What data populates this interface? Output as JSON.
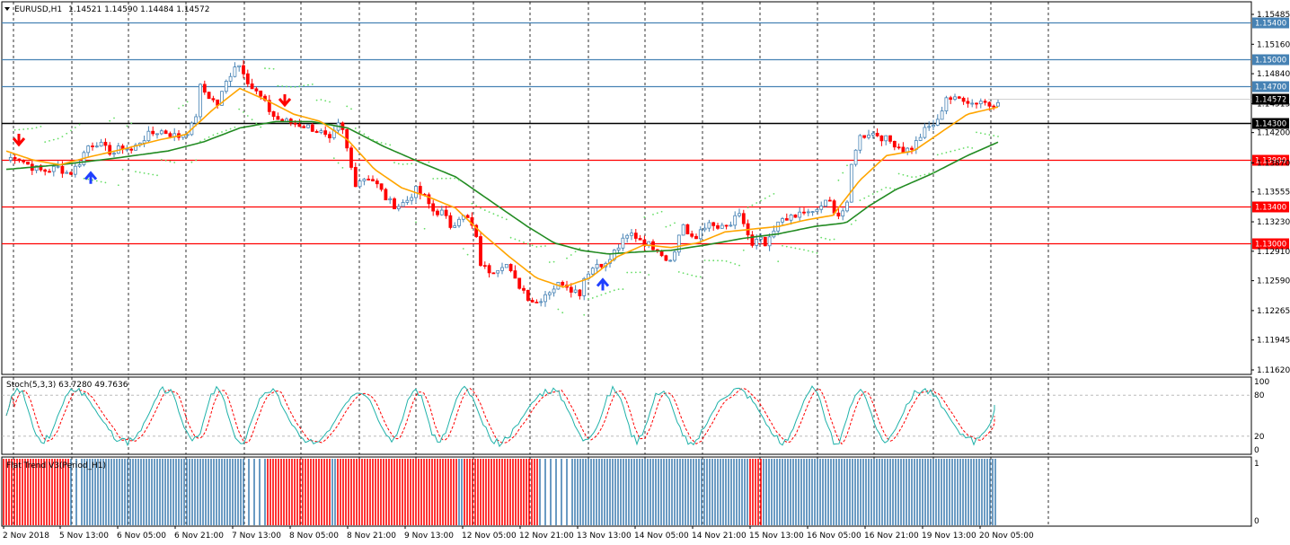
{
  "header": {
    "symbol": "EURUSD,H1",
    "ohlc": "1.14521 1.14590 1.14484 1.14572"
  },
  "stoch": {
    "label": "Stoch(5,3,3) 63.7280 49.7636",
    "level_labels": [
      "100",
      "80",
      "20",
      "0"
    ]
  },
  "flat_trend": {
    "label": "Flat Trend V3(Period_H1)",
    "level_labels": [
      "1",
      "0"
    ]
  },
  "price_axis": {
    "ticks": [
      "1.15485",
      "1.15160",
      "1.14840",
      "1.14515",
      "1.14200",
      "1.13870",
      "1.13555",
      "1.13230",
      "1.12910",
      "1.12590",
      "1.12265",
      "1.11945",
      "1.11620"
    ]
  },
  "levels": [
    {
      "label": "1.15400",
      "value": 1.154,
      "color": "#4682b4"
    },
    {
      "label": "1.15000",
      "value": 1.15,
      "color": "#4682b4"
    },
    {
      "label": "1.14700",
      "value": 1.147,
      "color": "#4682b4"
    },
    {
      "label": "1.14572",
      "value": 1.14572,
      "color": "#000000"
    },
    {
      "label": "1.14300",
      "value": 1.143,
      "color": "#000000"
    },
    {
      "label": "1.13900",
      "value": 1.139,
      "color": "#ff0000"
    },
    {
      "label": "1.13400",
      "value": 1.134,
      "color": "#ff0000"
    },
    {
      "label": "1.13000",
      "value": 1.13,
      "color": "#ff0000"
    }
  ],
  "time_axis": {
    "labels": [
      "2 Nov 2018",
      "5 Nov 13:00",
      "6 Nov 05:00",
      "6 Nov 21:00",
      "7 Nov 13:00",
      "8 Nov 05:00",
      "8 Nov 21:00",
      "9 Nov 13:00",
      "12 Nov 05:00",
      "12 Nov 21:00",
      "13 Nov 13:00",
      "14 Nov 05:00",
      "14 Nov 21:00",
      "15 Nov 13:00",
      "16 Nov 05:00",
      "16 Nov 21:00",
      "19 Nov 13:00",
      "20 Nov 05:00"
    ]
  },
  "colors": {
    "bull_candle": "#4682b4",
    "bear_candle": "#ff0000",
    "ma_fast": "#ffa500",
    "ma_slow": "#228b22",
    "sar": "#66dd66",
    "stoch_main": "#20b2aa",
    "stoch_signal": "#ff0000",
    "grid": "#000000"
  },
  "chart_data": {
    "type": "candlestick",
    "symbol": "EURUSD",
    "timeframe": "H1",
    "ylim": [
      1.1162,
      1.1555
    ],
    "close_path": [
      [
        0,
        1.139
      ],
      [
        10,
        1.1395
      ],
      [
        20,
        1.1388
      ],
      [
        30,
        1.1382
      ],
      [
        40,
        1.1378
      ],
      [
        50,
        1.138
      ],
      [
        58,
        1.1382
      ],
      [
        70,
        1.1375
      ],
      [
        80,
        1.1385
      ],
      [
        90,
        1.1405
      ],
      [
        100,
        1.141
      ],
      [
        110,
        1.1402
      ],
      [
        120,
        1.1398
      ],
      [
        130,
        1.1405
      ],
      [
        140,
        1.14
      ],
      [
        150,
        1.1412
      ],
      [
        160,
        1.1418
      ],
      [
        170,
        1.1422
      ],
      [
        180,
        1.142
      ],
      [
        190,
        1.1415
      ],
      [
        200,
        1.142
      ],
      [
        210,
        1.143
      ],
      [
        215,
        1.147
      ],
      [
        225,
        1.146
      ],
      [
        235,
        1.145
      ],
      [
        245,
        1.1475
      ],
      [
        255,
        1.1495
      ],
      [
        262,
        1.1492
      ],
      [
        272,
        1.147
      ],
      [
        282,
        1.146
      ],
      [
        290,
        1.1448
      ],
      [
        300,
        1.1435
      ],
      [
        310,
        1.1432
      ],
      [
        320,
        1.143
      ],
      [
        330,
        1.1428
      ],
      [
        340,
        1.1425
      ],
      [
        350,
        1.142
      ],
      [
        360,
        1.141
      ],
      [
        370,
        1.1428
      ],
      [
        375,
        1.142
      ],
      [
        382,
        1.139
      ],
      [
        388,
        1.1365
      ],
      [
        395,
        1.137
      ],
      [
        405,
        1.1372
      ],
      [
        415,
        1.136
      ],
      [
        425,
        1.1345
      ],
      [
        435,
        1.134
      ],
      [
        445,
        1.1345
      ],
      [
        455,
        1.1358
      ],
      [
        465,
        1.135
      ],
      [
        475,
        1.1335
      ],
      [
        485,
        1.1333
      ],
      [
        495,
        1.1318
      ],
      [
        505,
        1.133
      ],
      [
        515,
        1.1325
      ],
      [
        522,
        1.131
      ],
      [
        528,
        1.1278
      ],
      [
        535,
        1.127
      ],
      [
        545,
        1.1272
      ],
      [
        555,
        1.128
      ],
      [
        565,
        1.126
      ],
      [
        575,
        1.125
      ],
      [
        582,
        1.124
      ],
      [
        590,
        1.1235
      ],
      [
        600,
        1.1245
      ],
      [
        610,
        1.1252
      ],
      [
        620,
        1.1258
      ],
      [
        630,
        1.125
      ],
      [
        638,
        1.1245
      ],
      [
        645,
        1.1268
      ],
      [
        652,
        1.1272
      ],
      [
        660,
        1.128
      ],
      [
        668,
        1.1275
      ],
      [
        675,
        1.1288
      ],
      [
        685,
        1.13
      ],
      [
        695,
        1.131
      ],
      [
        705,
        1.1305
      ],
      [
        715,
        1.1298
      ],
      [
        725,
        1.1295
      ],
      [
        735,
        1.1282
      ],
      [
        745,
        1.129
      ],
      [
        752,
        1.1325
      ],
      [
        758,
        1.131
      ],
      [
        766,
        1.13
      ],
      [
        775,
        1.132
      ],
      [
        785,
        1.1318
      ],
      [
        795,
        1.1315
      ],
      [
        805,
        1.1318
      ],
      [
        815,
        1.133
      ],
      [
        822,
        1.132
      ],
      [
        830,
        1.1295
      ],
      [
        838,
        1.1305
      ],
      [
        846,
        1.1295
      ],
      [
        856,
        1.1315
      ],
      [
        866,
        1.133
      ],
      [
        876,
        1.1325
      ],
      [
        886,
        1.1335
      ],
      [
        896,
        1.133
      ],
      [
        906,
        1.134
      ],
      [
        916,
        1.1345
      ],
      [
        926,
        1.133
      ],
      [
        936,
        1.134
      ],
      [
        942,
        1.1395
      ],
      [
        950,
        1.1415
      ],
      [
        960,
        1.142
      ],
      [
        970,
        1.1418
      ],
      [
        980,
        1.1412
      ],
      [
        990,
        1.1408
      ],
      [
        1000,
        1.14
      ],
      [
        1010,
        1.1405
      ],
      [
        1020,
        1.142
      ],
      [
        1030,
        1.1428
      ],
      [
        1038,
        1.1432
      ],
      [
        1045,
        1.146
      ],
      [
        1055,
        1.1455
      ],
      [
        1065,
        1.1458
      ],
      [
        1075,
        1.1452
      ],
      [
        1085,
        1.1455
      ],
      [
        1095,
        1.145
      ],
      [
        1105,
        1.14572
      ]
    ],
    "ma_fast_path": [
      [
        0,
        1.14
      ],
      [
        30,
        1.139
      ],
      [
        60,
        1.1385
      ],
      [
        90,
        1.1393
      ],
      [
        130,
        1.1402
      ],
      [
        170,
        1.1412
      ],
      [
        200,
        1.1418
      ],
      [
        230,
        1.1445
      ],
      [
        260,
        1.1468
      ],
      [
        290,
        1.1455
      ],
      [
        320,
        1.144
      ],
      [
        350,
        1.1432
      ],
      [
        380,
        1.1412
      ],
      [
        410,
        1.138
      ],
      [
        440,
        1.136
      ],
      [
        470,
        1.135
      ],
      [
        500,
        1.1338
      ],
      [
        530,
        1.131
      ],
      [
        560,
        1.1285
      ],
      [
        590,
        1.1262
      ],
      [
        620,
        1.1252
      ],
      [
        650,
        1.1262
      ],
      [
        680,
        1.1285
      ],
      [
        710,
        1.1298
      ],
      [
        740,
        1.1295
      ],
      [
        770,
        1.13
      ],
      [
        800,
        1.1312
      ],
      [
        830,
        1.1315
      ],
      [
        860,
        1.1318
      ],
      [
        890,
        1.1325
      ],
      [
        920,
        1.133
      ],
      [
        950,
        1.1368
      ],
      [
        980,
        1.1395
      ],
      [
        1010,
        1.14
      ],
      [
        1040,
        1.142
      ],
      [
        1070,
        1.144
      ],
      [
        1105,
        1.1448
      ]
    ],
    "ma_slow_path": [
      [
        0,
        1.138
      ],
      [
        60,
        1.1385
      ],
      [
        120,
        1.1392
      ],
      [
        180,
        1.14
      ],
      [
        220,
        1.141
      ],
      [
        260,
        1.1425
      ],
      [
        300,
        1.1432
      ],
      [
        340,
        1.1432
      ],
      [
        380,
        1.1425
      ],
      [
        420,
        1.1405
      ],
      [
        460,
        1.1388
      ],
      [
        500,
        1.1372
      ],
      [
        540,
        1.1345
      ],
      [
        580,
        1.1318
      ],
      [
        610,
        1.13
      ],
      [
        640,
        1.1292
      ],
      [
        670,
        1.1288
      ],
      [
        700,
        1.129
      ],
      [
        740,
        1.1292
      ],
      [
        780,
        1.1298
      ],
      [
        820,
        1.1305
      ],
      [
        860,
        1.131
      ],
      [
        900,
        1.1318
      ],
      [
        935,
        1.1322
      ],
      [
        960,
        1.134
      ],
      [
        990,
        1.1358
      ],
      [
        1030,
        1.1375
      ],
      [
        1070,
        1.1395
      ],
      [
        1105,
        1.141
      ]
    ],
    "arrows": [
      {
        "x": 14,
        "direction": "down",
        "price": 1.1405
      },
      {
        "x": 94,
        "direction": "up",
        "price": 1.1378
      },
      {
        "x": 310,
        "direction": "down",
        "price": 1.1448
      },
      {
        "x": 664,
        "direction": "up",
        "price": 1.1262
      }
    ],
    "stochastic": {
      "main": "Stoch(5,3,3)",
      "last_main": 63.728,
      "last_signal": 49.7636,
      "levels": [
        20,
        80
      ]
    }
  }
}
